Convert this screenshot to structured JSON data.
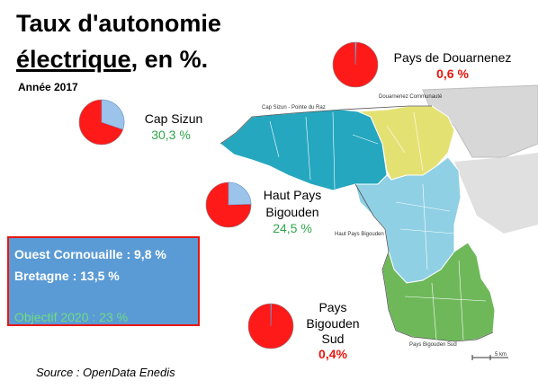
{
  "title_line1": "Taux d'autonomie",
  "title_word_underlined": "électrique",
  "title_rest": ", en %.",
  "year": "Année 2017",
  "regions": [
    {
      "name": "Cap Sizun",
      "value": "30,3 %",
      "fraction": 0.303,
      "value_color": "green"
    },
    {
      "name": "Pays de Douarnenez",
      "value": "0,6 %",
      "fraction": 0.006,
      "value_color": "red"
    },
    {
      "name_line1": "Haut Pays",
      "name_line2": "Bigouden",
      "value": "24,5 %",
      "fraction": 0.245,
      "value_color": "green"
    },
    {
      "name_line1": "Pays",
      "name_line2": "Bigouden",
      "name_line3": "Sud",
      "value": "0,4%",
      "fraction": 0.004,
      "value_color": "red"
    }
  ],
  "summary": {
    "ouest": "Ouest Cornouaille : 9,8 %",
    "bretagne": "Bretagne : 13,5 %",
    "objectif": "Objectif 2020 : 23 %"
  },
  "source": "Source : OpenData Enedis",
  "map_labels": {
    "cap_sizun": "Cap Sizun - Pointe du Raz",
    "douarnenez": "Douarnenez Communauté",
    "haut_pays": "Haut Pays Bigouden",
    "pays_sud": "Pays Bigouden Sud",
    "scale": "5 km"
  },
  "colors": {
    "pie_red": "#ff1a1a",
    "pie_blue": "#9cc3ea",
    "cap_sizun": "#25a7bf",
    "douarnenez": "#e4e173",
    "haut_pays": "#8fd0e4",
    "pays_sud": "#6eb85a",
    "summary_box": "#5b9bd5"
  }
}
